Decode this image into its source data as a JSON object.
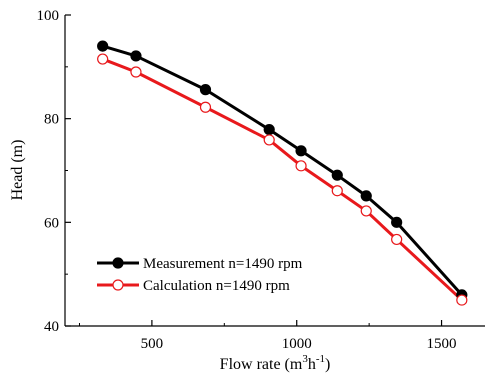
{
  "chart_data": {
    "type": "line",
    "xlabel_main": "Flow rate (m",
    "xlabel_sup1": "3",
    "xlabel_mid": "h",
    "xlabel_sup2": "-1",
    "xlabel_end": ")",
    "ylabel": "Head (m)",
    "xlim": [
      200,
      1650
    ],
    "ylim": [
      40,
      100
    ],
    "xticks": [
      500,
      1000,
      1500
    ],
    "yticks": [
      40,
      60,
      80,
      100
    ],
    "legend_position": "lower-left",
    "series": [
      {
        "name": "Measurement n=1490 rpm",
        "color": "#000000",
        "marker": "filled-circle",
        "x": [
          330,
          445,
          685,
          905,
          1015,
          1140,
          1240,
          1345,
          1570
        ],
        "y": [
          94.0,
          92.1,
          85.6,
          77.9,
          73.8,
          69.1,
          65.1,
          60.0,
          46.0
        ]
      },
      {
        "name": "Calculation n=1490 rpm",
        "color": "#e8191c",
        "marker": "open-circle",
        "x": [
          330,
          445,
          685,
          905,
          1015,
          1140,
          1240,
          1345,
          1570
        ],
        "y": [
          91.5,
          89.0,
          82.2,
          75.9,
          70.9,
          66.1,
          62.2,
          56.7,
          45.0
        ]
      }
    ]
  }
}
